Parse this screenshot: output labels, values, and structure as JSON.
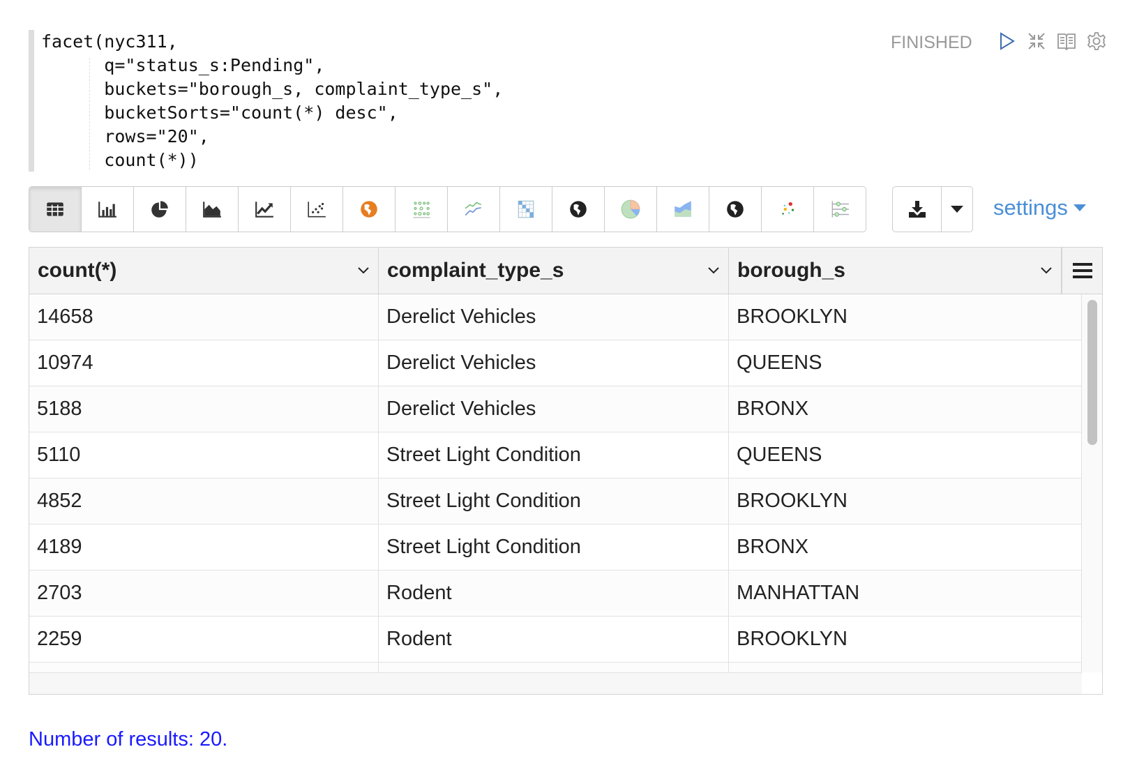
{
  "paragraph": {
    "code_lines": [
      "facet(nyc311,",
      "      q=\"status_s:Pending\",",
      "      buckets=\"borough_s, complaint_type_s\",",
      "      bucketSorts=\"count(*) desc\",",
      "      rows=\"20\",",
      "      count(*))"
    ],
    "status": "FINISHED",
    "controls": [
      "play-icon",
      "collapse-icon",
      "book-icon",
      "gear-icon"
    ]
  },
  "toolbar": {
    "buttons": [
      "table",
      "bar-chart",
      "pie-chart",
      "area-chart",
      "line-chart",
      "scatter-chart",
      "globe-orange",
      "dot-matrix",
      "multi-line",
      "heatmap",
      "globe",
      "pie-color",
      "stacked-area",
      "globe-dark",
      "bubble",
      "parallel-slider"
    ],
    "active": "table",
    "settings_label": "settings"
  },
  "table": {
    "columns": [
      "count(*)",
      "complaint_type_s",
      "borough_s"
    ],
    "rows": [
      [
        "14658",
        "Derelict Vehicles",
        "BROOKLYN"
      ],
      [
        "10974",
        "Derelict Vehicles",
        "QUEENS"
      ],
      [
        "5188",
        "Derelict Vehicles",
        "BRONX"
      ],
      [
        "5110",
        "Street Light Condition",
        "QUEENS"
      ],
      [
        "4852",
        "Street Light Condition",
        "BROOKLYN"
      ],
      [
        "4189",
        "Street Light Condition",
        "BRONX"
      ],
      [
        "2703",
        "Rodent",
        "MANHATTAN"
      ],
      [
        "2259",
        "Rodent",
        "BROOKLYN"
      ]
    ]
  },
  "footer": {
    "results_text": "Number of results: 20."
  },
  "colors": {
    "accent": "#4a8fd6",
    "status": "#999999",
    "footer_link": "#1a1aff"
  }
}
